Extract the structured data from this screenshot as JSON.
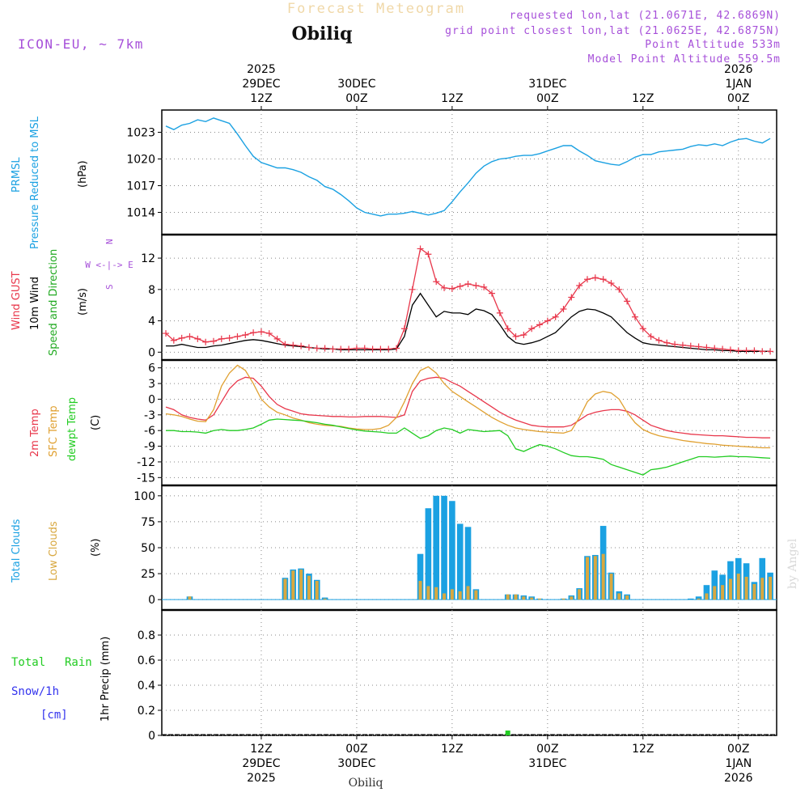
{
  "header": {
    "title": "Forecast Meteogram",
    "station": "Obiliq",
    "model": "ICON-EU, ~ 7km",
    "requested": "requested lon,lat (21.0671E, 42.6869N)",
    "grid_point": "grid point closest lon,lat (21.0625E, 42.6875N)",
    "point_alt": "Point Altitude 533m",
    "model_alt": "Model Point Altitude 559.5m",
    "footer_station": "Obiliq",
    "credit": "by Angel"
  },
  "time_axis": {
    "top": [
      {
        "lines": [
          "2025",
          "29DEC",
          "12Z"
        ],
        "hour": 12
      },
      {
        "lines": [
          "30DEC",
          "00Z"
        ],
        "hour": 24
      },
      {
        "lines": [
          "12Z"
        ],
        "hour": 36
      },
      {
        "lines": [
          "31DEC",
          "00Z"
        ],
        "hour": 48
      },
      {
        "lines": [
          "12Z"
        ],
        "hour": 60
      },
      {
        "lines": [
          "2026",
          "1JAN",
          "00Z"
        ],
        "hour": 72
      }
    ],
    "bottom": [
      {
        "lines": [
          "12Z",
          "29DEC",
          "2025"
        ],
        "hour": 12
      },
      {
        "lines": [
          "00Z",
          "30DEC"
        ],
        "hour": 24
      },
      {
        "lines": [
          "12Z"
        ],
        "hour": 36
      },
      {
        "lines": [
          "00Z",
          "31DEC"
        ],
        "hour": 48
      },
      {
        "lines": [
          "12Z"
        ],
        "hour": 60
      },
      {
        "lines": [
          "00Z",
          "1JAN",
          "2026"
        ],
        "hour": 72
      }
    ]
  },
  "colors": {
    "pressure": "#1ba1e2",
    "gust": "#e8374b",
    "wind": "#000000",
    "temp": "#e8374b",
    "sfc": "#e0a030",
    "dewpt": "#22cc22",
    "total_clouds": "#1ba1e2",
    "low_clouds": "#d8a840",
    "rain": "#22cc22",
    "snow": "#3333ee",
    "purple": "#a64fd9"
  },
  "chart_data": [
    {
      "type": "line",
      "panel": "pressure",
      "labels": [
        "PRMSL",
        "Pressure Reduced to MSL",
        "(hPa)"
      ],
      "ylim": [
        1011.5,
        1025.5
      ],
      "yticks": [
        1014,
        1017,
        1020,
        1023
      ],
      "x": [
        0,
        1,
        2,
        3,
        4,
        5,
        6,
        7,
        8,
        9,
        10,
        11,
        12,
        13,
        14,
        15,
        16,
        17,
        18,
        19,
        20,
        21,
        22,
        23,
        24,
        25,
        26,
        27,
        28,
        29,
        30,
        31,
        32,
        33,
        34,
        35,
        36,
        37,
        38,
        39,
        40,
        41,
        42,
        43,
        44,
        45,
        46,
        47,
        48,
        49,
        50,
        51,
        52,
        53,
        54,
        55,
        56,
        57,
        58,
        59,
        60,
        61,
        62,
        63,
        64,
        65,
        66,
        67,
        68,
        69,
        70,
        71,
        72,
        73,
        74,
        75,
        76
      ],
      "values": [
        1023.7,
        1023.3,
        1023.8,
        1024.0,
        1024.4,
        1024.2,
        1024.6,
        1024.3,
        1024.0,
        1022.8,
        1021.5,
        1020.3,
        1019.6,
        1019.3,
        1019.0,
        1019.0,
        1018.8,
        1018.5,
        1018.0,
        1017.6,
        1016.9,
        1016.6,
        1016.0,
        1015.3,
        1014.5,
        1014.0,
        1013.8,
        1013.6,
        1013.8,
        1013.8,
        1013.9,
        1014.1,
        1013.9,
        1013.7,
        1013.9,
        1014.2,
        1015.2,
        1016.3,
        1017.3,
        1018.4,
        1019.2,
        1019.7,
        1020.0,
        1020.1,
        1020.3,
        1020.4,
        1020.4,
        1020.6,
        1020.9,
        1021.2,
        1021.5,
        1021.5,
        1020.9,
        1020.4,
        1019.8,
        1019.6,
        1019.4,
        1019.3,
        1019.7,
        1020.2,
        1020.5,
        1020.5,
        1020.8,
        1020.9,
        1021.0,
        1021.1,
        1021.4,
        1021.6,
        1021.5,
        1021.7,
        1021.5,
        1021.9,
        1022.2,
        1022.3,
        1022.0,
        1021.8,
        1022.3
      ]
    },
    {
      "type": "line",
      "panel": "wind",
      "labels": [
        "Wind GUST",
        "10m Wind",
        "Speed and Direction",
        "(m/s)"
      ],
      "compass": [
        "N",
        "W <-|-> E",
        "S"
      ],
      "ylim": [
        -1,
        15
      ],
      "yticks": [
        0,
        4,
        8,
        12
      ],
      "x": [
        0,
        1,
        2,
        3,
        4,
        5,
        6,
        7,
        8,
        9,
        10,
        11,
        12,
        13,
        14,
        15,
        16,
        17,
        18,
        19,
        20,
        21,
        22,
        23,
        24,
        25,
        26,
        27,
        28,
        29,
        30,
        31,
        32,
        33,
        34,
        35,
        36,
        37,
        38,
        39,
        40,
        41,
        42,
        43,
        44,
        45,
        46,
        47,
        48,
        49,
        50,
        51,
        52,
        53,
        54,
        55,
        56,
        57,
        58,
        59,
        60,
        61,
        62,
        63,
        64,
        65,
        66,
        67,
        68,
        69,
        70,
        71,
        72,
        73,
        74,
        75,
        76
      ],
      "series": [
        {
          "name": "Wind GUST",
          "values": [
            2.4,
            1.5,
            1.8,
            2.0,
            1.7,
            1.3,
            1.4,
            1.7,
            1.8,
            2.0,
            2.2,
            2.5,
            2.6,
            2.4,
            1.7,
            1.0,
            0.9,
            0.8,
            0.6,
            0.5,
            0.5,
            0.4,
            0.4,
            0.4,
            0.5,
            0.5,
            0.4,
            0.4,
            0.4,
            0.5,
            3.0,
            8.0,
            13.2,
            12.5,
            9.0,
            8.2,
            8.1,
            8.4,
            8.7,
            8.5,
            8.3,
            7.5,
            5.0,
            3.0,
            2.0,
            2.2,
            3.0,
            3.5,
            4.0,
            4.5,
            5.5,
            7.0,
            8.5,
            9.3,
            9.5,
            9.3,
            8.8,
            8.0,
            6.5,
            4.5,
            3.0,
            2.0,
            1.5,
            1.2,
            1.0,
            0.9,
            0.8,
            0.7,
            0.6,
            0.5,
            0.4,
            0.3,
            0.2,
            0.2,
            0.2,
            0.1,
            0.1
          ]
        },
        {
          "name": "10m Wind",
          "values": [
            0.8,
            0.8,
            1.0,
            0.8,
            0.6,
            0.6,
            0.8,
            0.9,
            1.1,
            1.3,
            1.5,
            1.6,
            1.5,
            1.3,
            1.1,
            0.9,
            0.8,
            0.7,
            0.6,
            0.5,
            0.4,
            0.4,
            0.3,
            0.3,
            0.3,
            0.3,
            0.3,
            0.3,
            0.3,
            0.4,
            2.0,
            6.0,
            7.5,
            6.0,
            4.5,
            5.2,
            5.0,
            5.0,
            4.8,
            5.5,
            5.3,
            4.8,
            3.5,
            2.0,
            1.2,
            1.0,
            1.2,
            1.5,
            2.0,
            2.5,
            3.5,
            4.5,
            5.2,
            5.5,
            5.4,
            5.0,
            4.5,
            3.5,
            2.5,
            1.8,
            1.2,
            1.0,
            0.9,
            0.8,
            0.7,
            0.6,
            0.5,
            0.4,
            0.3,
            0.3,
            0.2,
            0.2,
            0.1,
            0.1,
            0.1,
            0.1,
            0.1
          ]
        }
      ]
    },
    {
      "type": "line",
      "panel": "temperature",
      "labels": [
        "2m Temp",
        "SFC Temp",
        "dewpt Temp",
        "(C)"
      ],
      "ylim": [
        -16.5,
        7.5
      ],
      "yticks": [
        -15,
        -12,
        -9,
        -6,
        -3,
        0,
        3,
        6
      ],
      "x": [
        0,
        1,
        2,
        3,
        4,
        5,
        6,
        7,
        8,
        9,
        10,
        11,
        12,
        13,
        14,
        15,
        16,
        17,
        18,
        19,
        20,
        21,
        22,
        23,
        24,
        25,
        26,
        27,
        28,
        29,
        30,
        31,
        32,
        33,
        34,
        35,
        36,
        37,
        38,
        39,
        40,
        41,
        42,
        43,
        44,
        45,
        46,
        47,
        48,
        49,
        50,
        51,
        52,
        53,
        54,
        55,
        56,
        57,
        58,
        59,
        60,
        61,
        62,
        63,
        64,
        65,
        66,
        67,
        68,
        69,
        70,
        71,
        72,
        73,
        74,
        75,
        76
      ],
      "series": [
        {
          "name": "2m Temp",
          "values": [
            -1.5,
            -2.0,
            -3.0,
            -3.5,
            -3.8,
            -4.0,
            -3.0,
            -0.5,
            2.0,
            3.5,
            4.2,
            4.0,
            2.5,
            0.5,
            -1.0,
            -1.8,
            -2.3,
            -2.8,
            -3.0,
            -3.1,
            -3.2,
            -3.3,
            -3.3,
            -3.4,
            -3.4,
            -3.3,
            -3.3,
            -3.3,
            -3.4,
            -3.5,
            -3.0,
            1.5,
            3.5,
            4.0,
            4.2,
            4.0,
            3.2,
            2.5,
            1.5,
            0.5,
            -0.5,
            -1.5,
            -2.5,
            -3.3,
            -4.0,
            -4.5,
            -5.0,
            -5.2,
            -5.3,
            -5.3,
            -5.3,
            -5.0,
            -4.0,
            -3.0,
            -2.5,
            -2.2,
            -2.0,
            -2.0,
            -2.3,
            -3.0,
            -4.0,
            -5.0,
            -5.5,
            -6.0,
            -6.3,
            -6.5,
            -6.7,
            -6.8,
            -6.9,
            -7.0,
            -7.0,
            -7.1,
            -7.2,
            -7.3,
            -7.3,
            -7.4,
            -7.4
          ]
        },
        {
          "name": "SFC Temp",
          "values": [
            -2.8,
            -3.0,
            -3.3,
            -3.8,
            -4.2,
            -4.3,
            -2.0,
            2.5,
            5.0,
            6.5,
            5.5,
            3.0,
            0.0,
            -1.5,
            -2.5,
            -3.0,
            -3.6,
            -4.0,
            -4.5,
            -4.8,
            -5.0,
            -5.1,
            -5.2,
            -5.5,
            -5.7,
            -5.8,
            -5.8,
            -5.6,
            -5.0,
            -3.5,
            -0.5,
            3.0,
            5.5,
            6.2,
            5.0,
            3.0,
            1.5,
            0.5,
            -0.5,
            -1.5,
            -2.5,
            -3.5,
            -4.3,
            -5.0,
            -5.5,
            -5.8,
            -6.0,
            -6.2,
            -6.3,
            -6.4,
            -6.5,
            -6.0,
            -3.5,
            -0.5,
            1.0,
            1.5,
            1.2,
            0.0,
            -2.5,
            -4.5,
            -5.8,
            -6.5,
            -7.0,
            -7.3,
            -7.6,
            -7.9,
            -8.1,
            -8.3,
            -8.5,
            -8.6,
            -8.8,
            -8.9,
            -9.0,
            -9.1,
            -9.2,
            -9.3,
            -9.3
          ]
        },
        {
          "name": "dewpt Temp",
          "values": [
            -6.0,
            -6.0,
            -6.2,
            -6.2,
            -6.3,
            -6.5,
            -6.0,
            -5.8,
            -6.0,
            -6.0,
            -5.8,
            -5.5,
            -4.8,
            -4.0,
            -3.8,
            -3.9,
            -4.0,
            -4.1,
            -4.3,
            -4.5,
            -4.8,
            -5.0,
            -5.3,
            -5.6,
            -5.9,
            -6.1,
            -6.2,
            -6.3,
            -6.5,
            -6.5,
            -5.5,
            -6.5,
            -7.5,
            -7.0,
            -6.0,
            -5.5,
            -5.8,
            -6.5,
            -5.8,
            -6.0,
            -6.2,
            -6.1,
            -6.0,
            -7.0,
            -9.5,
            -10.0,
            -9.3,
            -8.7,
            -9.0,
            -9.5,
            -10.2,
            -10.8,
            -11.0,
            -11.0,
            -11.2,
            -11.5,
            -12.5,
            -13.0,
            -13.5,
            -14.0,
            -14.5,
            -13.5,
            -13.3,
            -13.0,
            -12.5,
            -12.0,
            -11.5,
            -11.0,
            -11.0,
            -11.1,
            -11.0,
            -10.9,
            -11.0,
            -11.0,
            -11.1,
            -11.2,
            -11.3
          ]
        }
      ]
    },
    {
      "type": "bar",
      "panel": "clouds",
      "labels": [
        "Total Clouds",
        "Low Clouds",
        "(%)"
      ],
      "ylim": [
        -10,
        110
      ],
      "yticks": [
        0,
        25,
        50,
        75,
        100
      ],
      "x": [
        3,
        15,
        16,
        17,
        18,
        19,
        20,
        30,
        31,
        32,
        33,
        34,
        35,
        36,
        37,
        38,
        39,
        40,
        41,
        43,
        44,
        45,
        46,
        47,
        50,
        51,
        52,
        53,
        54,
        55,
        56,
        57,
        58,
        62,
        63,
        64,
        65,
        66,
        67,
        68,
        69,
        70,
        71,
        72,
        73,
        74,
        75,
        76
      ],
      "total": [
        3,
        21,
        29,
        30,
        25,
        19,
        2,
        0,
        0,
        44,
        88,
        100,
        100,
        95,
        73,
        70,
        10,
        0,
        0,
        5,
        5,
        4,
        3,
        1,
        1,
        4,
        11,
        42,
        43,
        71,
        26,
        8,
        5,
        0,
        0,
        0,
        0,
        1,
        3,
        14,
        28,
        24,
        37,
        40,
        35,
        17,
        40,
        26
      ],
      "low": [
        3,
        20,
        28,
        29,
        23,
        18,
        1,
        0,
        0,
        18,
        13,
        12,
        6,
        10,
        8,
        13,
        9,
        0,
        0,
        5,
        5,
        3,
        2,
        1,
        1,
        3,
        10,
        41,
        42,
        44,
        25,
        6,
        4,
        0,
        0,
        0,
        0,
        0,
        1,
        6,
        13,
        14,
        20,
        25,
        22,
        15,
        21,
        22
      ]
    },
    {
      "type": "bar",
      "panel": "precip",
      "labels": [
        "Total",
        "Rain",
        "Snow/1h",
        "[cm]",
        "1hr Precip (mm)"
      ],
      "ylim": [
        0,
        1
      ],
      "yticks": [
        0,
        0.2,
        0.4,
        0.6,
        0.8
      ],
      "tick_labels": [
        "0",
        "0.2",
        "0.4",
        "0.6",
        "0.8"
      ],
      "x": [
        43
      ],
      "rain": [
        0.03
      ],
      "snow": [
        0
      ]
    }
  ]
}
